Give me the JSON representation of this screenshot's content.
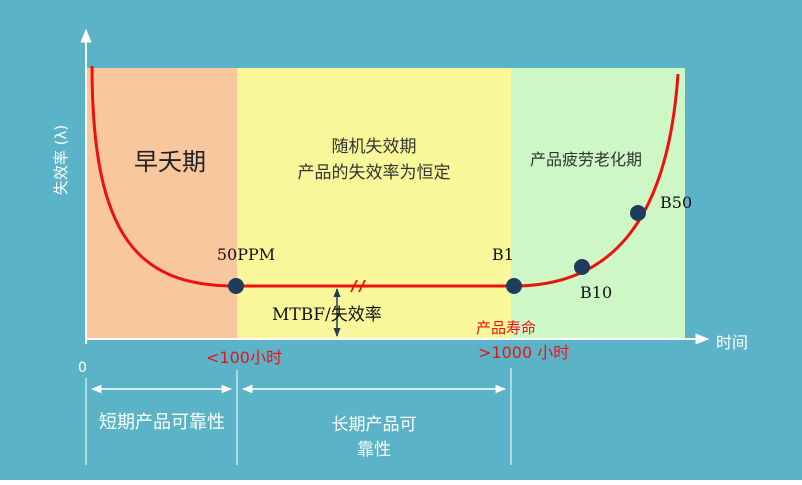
{
  "colors": {
    "background": "#5BB3C7",
    "early_zone": "#F8C79E",
    "random_zone": "#F8F89A",
    "wearout_zone": "#CDF8C6",
    "curve": "#EE1010",
    "marker": "#1F3C5E",
    "red_text": "#EE1010",
    "white_text": "#FFFFFF"
  },
  "axes": {
    "y_label": "失效率 (λ)",
    "x_label": "时间",
    "origin_label": "0"
  },
  "zones": {
    "early": {
      "label": "早夭期"
    },
    "random": {
      "line1": "随机失效期",
      "line2": "产品的失效率为恒定"
    },
    "wearout": {
      "label": "产品疲劳老化期"
    }
  },
  "points": {
    "ppm": "50PPM",
    "b1": "B1",
    "b10": "B10",
    "b50": "B50"
  },
  "annotations": {
    "mtbf": "MTBF/失效率",
    "early_time": "<100小时",
    "life_label": "产品寿命",
    "life_time": ">1000 小时"
  },
  "bottom": {
    "short_term": "短期产品可靠性",
    "long_term_line1": "长期产品可",
    "long_term_line2": "靠性"
  }
}
